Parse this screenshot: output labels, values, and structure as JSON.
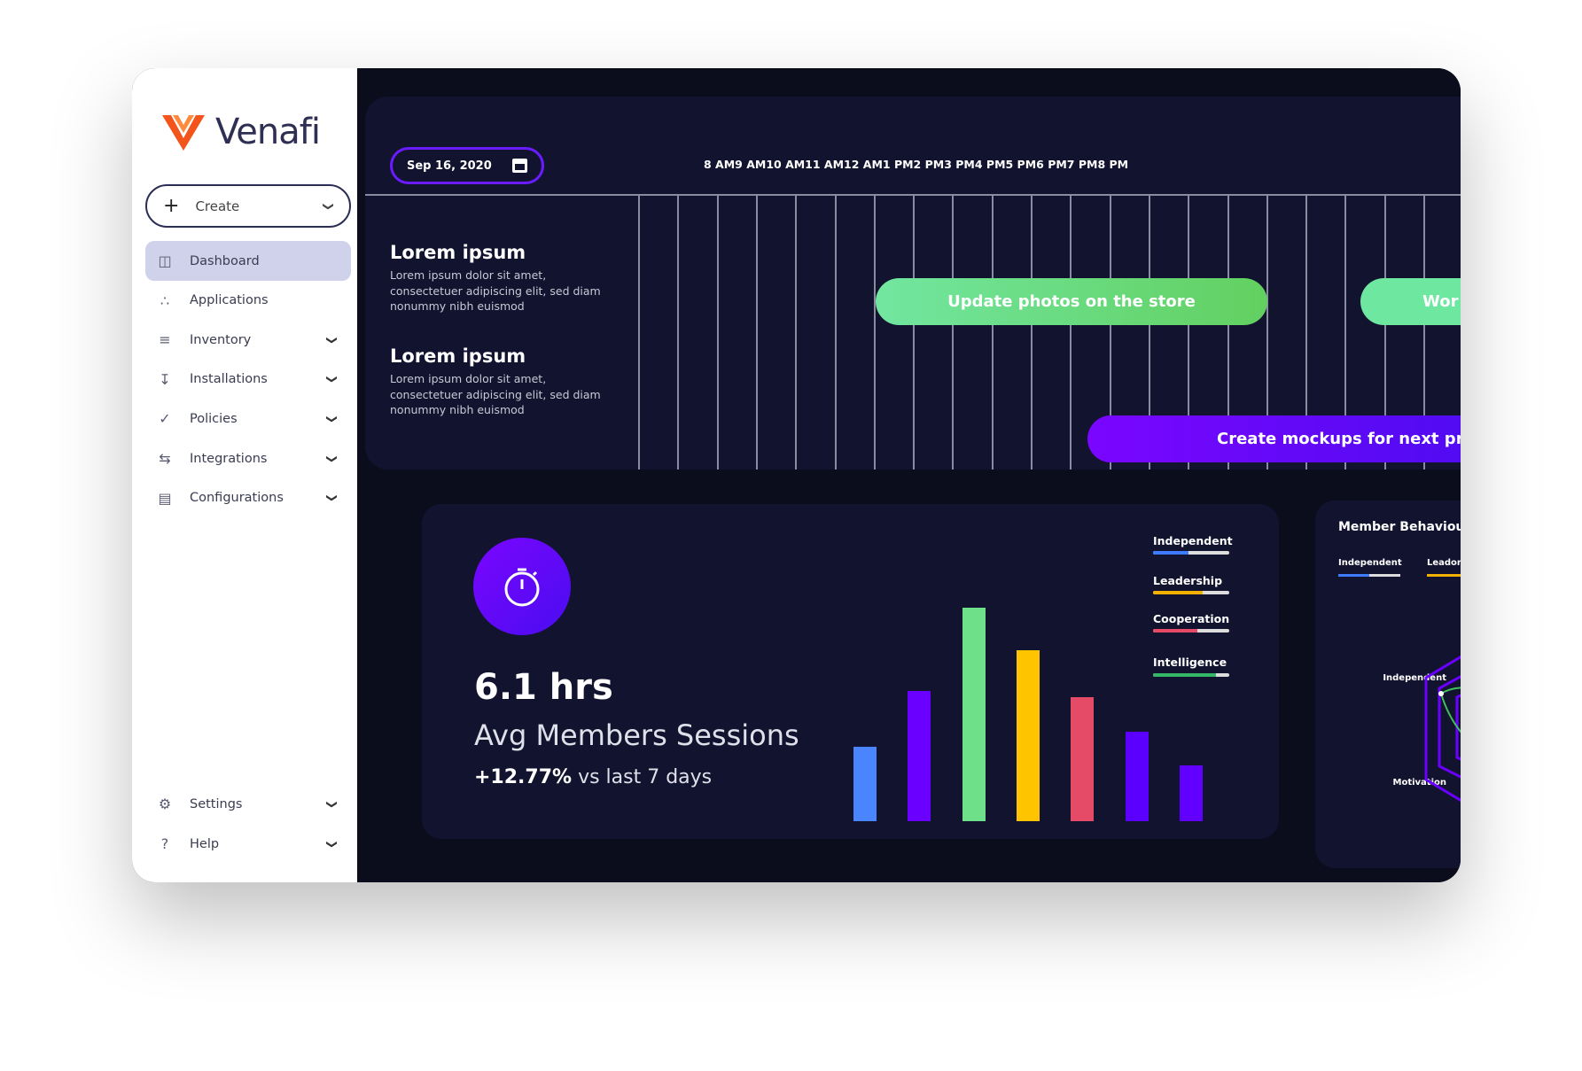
{
  "brand": {
    "name": "Venafi",
    "logo_color": "#f2541b"
  },
  "sidebar": {
    "create_label": "Create",
    "items": [
      {
        "label": "Dashboard",
        "icon": "dashboard-icon",
        "active": true,
        "chevron": false
      },
      {
        "label": "Applications",
        "icon": "applications-icon",
        "chevron": false
      },
      {
        "label": "Inventory",
        "icon": "inventory-icon",
        "chevron": true
      },
      {
        "label": "Installations",
        "icon": "installations-icon",
        "chevron": true
      },
      {
        "label": "Policies",
        "icon": "policies-icon",
        "chevron": true
      },
      {
        "label": "Integrations",
        "icon": "integrations-icon",
        "chevron": true
      },
      {
        "label": "Configurations",
        "icon": "configurations-icon",
        "chevron": true
      }
    ],
    "bottom": [
      {
        "label": "Settings",
        "icon": "gear-icon"
      },
      {
        "label": "Help",
        "icon": "help-icon"
      }
    ]
  },
  "timeline": {
    "date": "Sep 16, 2020",
    "hours": "8 AM9 AM10 AM11 AM12 AM1 PM2 PM3 PM4 PM5 PM6 PM7 PM8 PM",
    "rows": [
      {
        "title": "Lorem ipsum",
        "desc": "Lorem ipsum dolor sit amet, consectetuer adipiscing elit, sed diam nonummy nibh euismod"
      },
      {
        "title": "Lorem ipsum",
        "desc": "Lorem ipsum dolor sit amet, consectetuer adipiscing elit, sed diam nonummy nibh euismod"
      }
    ],
    "tasks": [
      {
        "label": "Update photos on the store",
        "color": "#6ee08a"
      },
      {
        "label": "Wor",
        "color": "#6ee08a"
      },
      {
        "label": "Create mockups for next pr",
        "color": "#6a00ff"
      }
    ]
  },
  "stats": {
    "value": "6.1 hrs",
    "label": "Avg Members Sessions",
    "change": "+12.77%",
    "change_suffix": "vs last 7 days",
    "icon": "stopwatch-icon"
  },
  "chart_data": {
    "type": "bar",
    "values": [
      35,
      61,
      100,
      80,
      58,
      42,
      26
    ],
    "colors": [
      "#4a84ff",
      "#6a00ff",
      "#6ee08a",
      "#ffc400",
      "#e54a66",
      "#5b00ff",
      "#6200ff"
    ],
    "legend": [
      {
        "name": "Independent",
        "color": "#3f7bff",
        "level": 0.47
      },
      {
        "name": "Leadership",
        "color": "#f2b100",
        "level": 0.65
      },
      {
        "name": "Cooperation",
        "color": "#e54a66",
        "level": 0.58
      },
      {
        "name": "Intelligence",
        "color": "#34b868",
        "level": 0.82
      }
    ]
  },
  "behaviour": {
    "title": "Member Behaviou",
    "legend": [
      {
        "name": "Independent",
        "color": "#3f7bff",
        "level": 0.5
      },
      {
        "name": "Leador",
        "color": "#f2b100",
        "level": 0.6
      }
    ],
    "axis_labels": [
      "Independent",
      "Motivation"
    ]
  }
}
